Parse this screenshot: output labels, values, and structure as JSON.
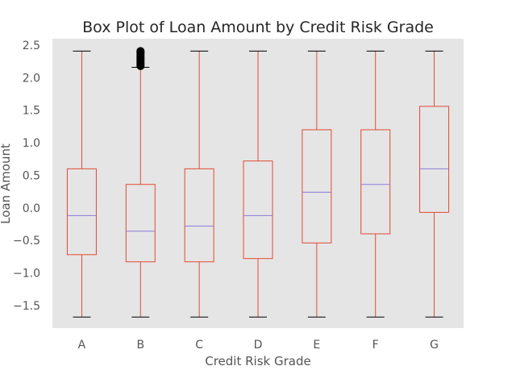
{
  "chart_data": {
    "type": "box",
    "title": "Box Plot of Loan Amount by Credit Risk Grade",
    "xlabel": "Credit Risk Grade",
    "ylabel": "Loan Amount",
    "ylim": [
      -1.85,
      2.6
    ],
    "yticks": [
      2.5,
      2.0,
      1.5,
      1.0,
      0.5,
      0.0,
      -0.5,
      -1.0,
      -1.5
    ],
    "ytick_labels": [
      "2.5",
      "2.0",
      "1.5",
      "1.0",
      "0.5",
      "0.0",
      "−0.5",
      "−1.0",
      "−1.5"
    ],
    "grid": false,
    "categories": [
      "A",
      "B",
      "C",
      "D",
      "E",
      "F",
      "G"
    ],
    "boxes": [
      {
        "category": "A",
        "whisker_low": -1.68,
        "q1": -0.72,
        "median": -0.12,
        "q3": 0.6,
        "whisker_high": 2.41,
        "outliers": []
      },
      {
        "category": "B",
        "whisker_low": -1.68,
        "q1": -0.83,
        "median": -0.36,
        "q3": 0.36,
        "whisker_high": 2.16,
        "outliers": [
          2.18,
          2.2,
          2.22,
          2.24,
          2.26,
          2.28,
          2.3,
          2.32,
          2.34,
          2.36,
          2.38,
          2.4,
          2.41
        ]
      },
      {
        "category": "C",
        "whisker_low": -1.68,
        "q1": -0.83,
        "median": -0.28,
        "q3": 0.6,
        "whisker_high": 2.41,
        "outliers": []
      },
      {
        "category": "D",
        "whisker_low": -1.68,
        "q1": -0.78,
        "median": -0.12,
        "q3": 0.72,
        "whisker_high": 2.41,
        "outliers": []
      },
      {
        "category": "E",
        "whisker_low": -1.68,
        "q1": -0.54,
        "median": 0.24,
        "q3": 1.2,
        "whisker_high": 2.41,
        "outliers": []
      },
      {
        "category": "F",
        "whisker_low": -1.68,
        "q1": -0.4,
        "median": 0.36,
        "q3": 1.2,
        "whisker_high": 2.41,
        "outliers": []
      },
      {
        "category": "G",
        "whisker_low": -1.68,
        "q1": -0.07,
        "median": 0.6,
        "q3": 1.56,
        "whisker_high": 2.41,
        "outliers": []
      }
    ],
    "colors": {
      "background": "#e5e5e5",
      "box": "#e24a33",
      "median": "#8b7bdb",
      "cap": "#000000",
      "outlier": "#000000"
    }
  }
}
